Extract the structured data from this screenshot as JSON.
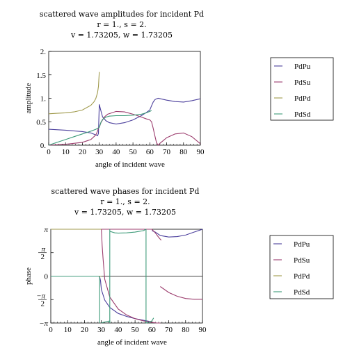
{
  "colors": {
    "PdPu": "#4b3f9c",
    "PdSu": "#9c3d6e",
    "PdPd": "#a09a4c",
    "PdSd": "#3c9a78"
  },
  "chart_data": [
    {
      "type": "line",
      "title": "scattered wave amplitudes for incident Pd",
      "subtitle_line1": "r = 1., s = 2.",
      "subtitle_line2": "v = 1.73205, w = 1.73205",
      "xlabel": "angle of incident wave",
      "ylabel": "amplitude",
      "xlim": [
        0,
        90
      ],
      "ylim": [
        0,
        2
      ],
      "xticks": [
        "0",
        "10",
        "20",
        "30",
        "40",
        "50",
        "60",
        "70",
        "80",
        "90"
      ],
      "yticks": [
        "0.",
        "0.5",
        "1.",
        "1.5",
        "2."
      ],
      "legend": [
        "PdPu",
        "PdSu",
        "PdPd",
        "PdSd"
      ],
      "legend_position": "right",
      "series": [
        {
          "name": "PdPu",
          "x": [
            0,
            10,
            20,
            25,
            28,
            29,
            29.5,
            30,
            31,
            32,
            34,
            36,
            40,
            45,
            50,
            55,
            58,
            60,
            61,
            62,
            63,
            64,
            65,
            70,
            75,
            80,
            85,
            90
          ],
          "y": [
            0.34,
            0.32,
            0.29,
            0.26,
            0.22,
            0.2,
            0.25,
            0.87,
            0.73,
            0.6,
            0.52,
            0.48,
            0.45,
            0.48,
            0.54,
            0.63,
            0.7,
            0.75,
            0.84,
            0.92,
            0.97,
            0.99,
            1.0,
            0.96,
            0.93,
            0.92,
            0.95,
            0.99
          ]
        },
        {
          "name": "PdSu",
          "x": [
            0,
            10,
            20,
            25,
            28,
            29,
            29.5,
            30,
            31,
            33,
            35,
            40,
            45,
            50,
            55,
            58,
            60,
            61,
            62,
            63,
            64,
            65,
            66,
            68,
            70,
            75,
            80,
            85,
            90
          ],
          "y": [
            0.0,
            0.02,
            0.06,
            0.12,
            0.22,
            0.3,
            0.37,
            0.38,
            0.48,
            0.6,
            0.66,
            0.72,
            0.71,
            0.66,
            0.6,
            0.56,
            0.54,
            0.5,
            0.36,
            0.2,
            0.05,
            0.0,
            0.04,
            0.1,
            0.16,
            0.24,
            0.26,
            0.18,
            0.03
          ]
        },
        {
          "name": "PdPd",
          "x": [
            0,
            5,
            10,
            15,
            20,
            25,
            27,
            28,
            29,
            29.5,
            30
          ],
          "y": [
            0.67,
            0.68,
            0.69,
            0.71,
            0.75,
            0.85,
            0.93,
            1.0,
            1.12,
            1.25,
            1.56
          ]
        },
        {
          "name": "PdSd",
          "x": [
            0,
            5,
            10,
            15,
            20,
            25,
            28,
            29,
            29.5,
            30,
            31,
            32,
            34,
            36,
            40,
            45,
            50,
            55,
            58,
            60,
            61
          ],
          "y": [
            0.0,
            0.06,
            0.12,
            0.18,
            0.24,
            0.3,
            0.34,
            0.36,
            0.37,
            0.38,
            0.49,
            0.55,
            0.6,
            0.62,
            0.63,
            0.63,
            0.64,
            0.66,
            0.69,
            0.72,
            0.74
          ]
        }
      ]
    },
    {
      "type": "line",
      "title": "scattered wave phases for incident Pd",
      "subtitle_line1": "r = 1., s = 2.",
      "subtitle_line2": "v = 1.73205, w = 1.73205",
      "xlabel": "angle of incident wave",
      "ylabel": "phase",
      "xlim": [
        0,
        90
      ],
      "ylim": [
        -3.14159,
        3.14159
      ],
      "xticks": [
        "0",
        "10",
        "20",
        "30",
        "40",
        "50",
        "60",
        "70",
        "80",
        "90"
      ],
      "yticks": [
        "−π",
        "−π/2",
        "0",
        "π/2",
        "π"
      ],
      "legend": [
        "PdPu",
        "PdSu",
        "PdPd",
        "PdSd"
      ],
      "legend_position": "right",
      "series": [
        {
          "name": "PdPu",
          "segments": [
            {
              "x": [
                0,
                10,
                20,
                27,
                28.5,
                29,
                29.5,
                30,
                32,
                35,
                40,
                45,
                50,
                55,
                58,
                60
              ],
              "y": [
                0,
                0,
                0,
                0,
                0,
                -0.03,
                -0.3,
                -0.9,
                -1.6,
                -2.1,
                -2.5,
                -2.7,
                -2.85,
                -2.96,
                -3.02,
                -3.1
              ]
            },
            {
              "x": [
                60,
                62,
                65,
                70,
                75,
                80,
                85,
                90
              ],
              "y": [
                3.05,
                2.95,
                2.72,
                2.62,
                2.65,
                2.75,
                2.95,
                3.14
              ]
            }
          ]
        },
        {
          "name": "PdSu",
          "segments": [
            {
              "x": [
                0,
                10,
                20,
                28.5,
                29
              ],
              "y": [
                0,
                0,
                0,
                0,
                0
              ]
            },
            {
              "x": [
                30,
                30.5,
                31,
                32,
                35,
                40,
                45,
                50,
                55,
                60,
                63,
                65
              ],
              "y": [
                3.14,
                2.0,
                1.2,
                -0.2,
                -1.4,
                -2.2,
                -2.6,
                -2.85,
                -3.0,
                -3.1,
                -3.14,
                -3.14
              ]
            },
            {
              "x": [
                30,
                34,
                40,
                45,
                50,
                55,
                60,
                62,
                64,
                65.5
              ],
              "y": [
                3.14,
                3.14,
                3.14,
                3.14,
                3.14,
                3.14,
                3.14,
                2.9,
                2.6,
                2.4
              ]
            },
            {
              "x": [
                65,
                70,
                75,
                80,
                85,
                90
              ],
              "y": [
                -0.7,
                -1.1,
                -1.35,
                -1.5,
                -1.55,
                -1.55
              ]
            }
          ]
        },
        {
          "name": "PdPd",
          "segments": [
            {
              "x": [
                0,
                10,
                20,
                28,
                29.5,
                30
              ],
              "y": [
                0,
                0,
                0,
                0,
                0,
                0
              ]
            },
            {
              "x": [
                0,
                5,
                10,
                15,
                20,
                25,
                28,
                29.5,
                30
              ],
              "y": [
                3.14,
                3.14,
                3.14,
                3.14,
                3.14,
                3.14,
                3.14,
                3.14,
                3.14
              ]
            }
          ]
        },
        {
          "name": "PdSd",
          "segments": [
            {
              "x": [
                0,
                10,
                20,
                28.5
              ],
              "y": [
                0,
                0,
                0,
                0
              ]
            },
            {
              "x": [
                29,
                29
              ],
              "y": [
                0,
                -3.14
              ]
            },
            {
              "x": [
                30,
                31,
                33,
                35,
                35
              ],
              "y": [
                -3.14,
                -3.1,
                -3.05,
                -3.0,
                -3.14
              ]
            },
            {
              "x": [
                35,
                35
              ],
              "y": [
                -3.14,
                3.14
              ]
            },
            {
              "x": [
                35,
                38,
                40,
                45,
                50,
                55,
                56.5
              ],
              "y": [
                3.0,
                2.9,
                2.88,
                2.9,
                2.95,
                3.05,
                3.14
              ]
            },
            {
              "x": [
                56.5,
                56.5
              ],
              "y": [
                3.14,
                -3.14
              ]
            },
            {
              "x": [
                56.5,
                58,
                60,
                61
              ],
              "y": [
                -3.14,
                -3.1,
                -3.0,
                -2.8
              ]
            }
          ]
        }
      ]
    }
  ]
}
